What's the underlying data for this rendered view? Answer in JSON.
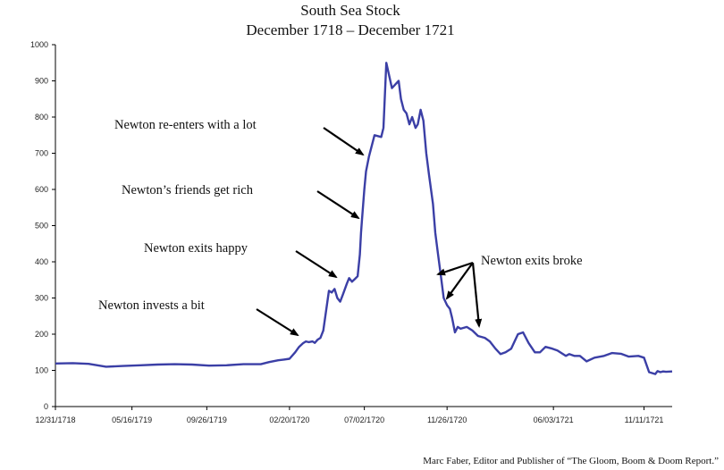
{
  "chart_data": {
    "type": "line",
    "title": "South Sea Stock",
    "subtitle": "December 1718 – December 1721",
    "credit": "Marc Faber, Editor and Publisher of “The Gloom, Boom & Doom Report.”",
    "xlabel": "",
    "ylabel": "",
    "ylim": [
      0,
      1000
    ],
    "yticks": [
      0,
      100,
      200,
      300,
      400,
      500,
      600,
      700,
      800,
      900,
      1000
    ],
    "xlim": [
      "1718-12-31",
      "1721-12-31"
    ],
    "xticks": [
      "12/31/1718",
      "05/16/1719",
      "09/26/1719",
      "02/20/1720",
      "07/02/1720",
      "11/26/1720",
      "06/03/1721",
      "11/11/1721"
    ],
    "grid": false,
    "line_color": "#3b3fa6",
    "series": [
      {
        "x": [
          "1718-12-31",
          "1719-01-31",
          "1719-02-28",
          "1719-03-31",
          "1719-04-30",
          "1719-05-31",
          "1719-06-30",
          "1719-07-31",
          "1719-08-31",
          "1719-09-30",
          "1719-10-31",
          "1719-11-30",
          "1719-12-31",
          "1720-01-15",
          "1720-01-31",
          "1720-02-10",
          "1720-02-20",
          "1720-03-01",
          "1720-03-08",
          "1720-03-15",
          "1720-03-20",
          "1720-03-25",
          "1720-04-01",
          "1720-04-05",
          "1720-04-10",
          "1720-04-15",
          "1720-04-20",
          "1720-04-30",
          "1720-05-05",
          "1720-05-10",
          "1720-05-15",
          "1720-05-20",
          "1720-05-25",
          "1720-06-01",
          "1720-06-05",
          "1720-06-10",
          "1720-06-15",
          "1720-06-20",
          "1720-06-24",
          "1720-06-26",
          "1720-06-28",
          "1720-07-02",
          "1720-07-05",
          "1720-07-10",
          "1720-07-20",
          "1720-08-01",
          "1720-08-05",
          "1720-08-10",
          "1720-08-20",
          "1720-09-01",
          "1720-09-05",
          "1720-09-10",
          "1720-09-15",
          "1720-09-20",
          "1720-09-25",
          "1720-10-01",
          "1720-10-05",
          "1720-10-10",
          "1720-10-15",
          "1720-10-20",
          "1720-10-25",
          "1720-11-01",
          "1720-11-05",
          "1720-11-10",
          "1720-11-15",
          "1720-11-20",
          "1720-11-26",
          "1720-12-01",
          "1720-12-05",
          "1720-12-10",
          "1720-12-15",
          "1720-12-20",
          "1720-12-31",
          "1721-01-10",
          "1721-01-20",
          "1721-02-01",
          "1721-02-10",
          "1721-02-20",
          "1721-03-01",
          "1721-03-10",
          "1721-03-20",
          "1721-04-01",
          "1721-04-10",
          "1721-04-20",
          "1721-05-01",
          "1721-05-10",
          "1721-05-20",
          "1721-06-01",
          "1721-06-10",
          "1721-06-20",
          "1721-06-25",
          "1721-07-01",
          "1721-07-10",
          "1721-07-20",
          "1721-08-01",
          "1721-08-15",
          "1721-09-01",
          "1721-09-15",
          "1721-10-01",
          "1721-10-15",
          "1721-11-01",
          "1721-11-11",
          "1721-11-20",
          "1721-12-01",
          "1721-12-05",
          "1721-12-10",
          "1721-12-15",
          "1721-12-20",
          "1721-12-31"
        ],
        "y": [
          119,
          120,
          118,
          110,
          112,
          114,
          116,
          117,
          116,
          113,
          114,
          117,
          117,
          123,
          128,
          130,
          132,
          150,
          165,
          175,
          180,
          178,
          180,
          176,
          185,
          190,
          210,
          320,
          315,
          325,
          300,
          290,
          310,
          340,
          355,
          345,
          352,
          360,
          420,
          480,
          520,
          600,
          650,
          690,
          750,
          745,
          770,
          950,
          880,
          900,
          850,
          820,
          810,
          780,
          800,
          770,
          780,
          820,
          790,
          700,
          640,
          560,
          480,
          420,
          360,
          300,
          280,
          270,
          245,
          205,
          220,
          215,
          220,
          210,
          195,
          190,
          180,
          160,
          145,
          150,
          160,
          200,
          205,
          175,
          150,
          150,
          165,
          160,
          155,
          145,
          140,
          145,
          140,
          140,
          125,
          135,
          140,
          148,
          146,
          138,
          140,
          135,
          95,
          90,
          98,
          95,
          97,
          96,
          97
        ]
      }
    ],
    "annotations": [
      {
        "text": "Newton re-enters with a lot"
      },
      {
        "text": "Newton’s friends get rich"
      },
      {
        "text": "Newton exits happy"
      },
      {
        "text": "Newton invests a bit"
      },
      {
        "text": "Newton exits broke"
      }
    ]
  }
}
